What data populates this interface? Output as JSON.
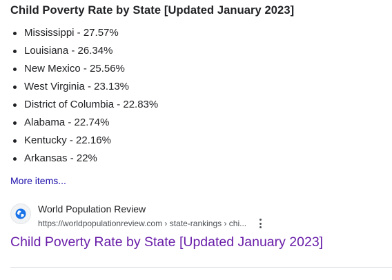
{
  "snippet": {
    "title": "Child Poverty Rate by State [Updated January 2023]",
    "items": [
      "Mississippi - 27.57%",
      "Louisiana - 26.34%",
      "New Mexico - 25.56%",
      "West Virginia - 23.13%",
      "District of Columbia - 22.83%",
      "Alabama - 22.74%",
      "Kentucky - 22.16%",
      "Arkansas - 22%"
    ],
    "more_items_label": "More items..."
  },
  "source": {
    "site_name": "World Population Review",
    "url": "https://worldpopulationreview.com › state-rankings › chi...",
    "favicon_icon": "globe-icon",
    "menu_icon": "more-vert-icon"
  },
  "result": {
    "title": "Child Poverty Rate by State [Updated January 2023]"
  },
  "colors": {
    "text": "#202124",
    "link_blue": "#1a0dab",
    "visited_link": "#681da8",
    "secondary_text": "#4d5156",
    "favicon_blue": "#1a73e8",
    "divider": "#dadce0"
  }
}
